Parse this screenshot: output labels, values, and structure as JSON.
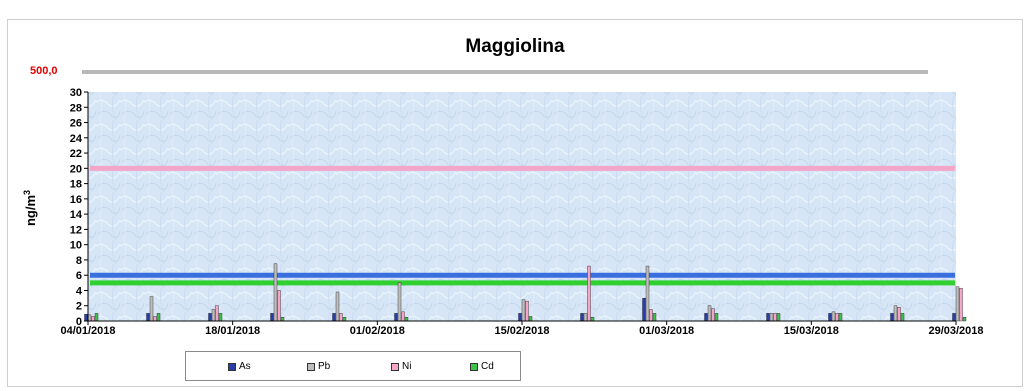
{
  "chart_data": {
    "type": "bar",
    "title": "Maggiolina",
    "ylabel": "ng/m",
    "ylabel_sup": "3",
    "ylim": [
      0,
      30
    ],
    "y_ticks": [
      0,
      2,
      4,
      6,
      8,
      10,
      12,
      14,
      16,
      18,
      20,
      22,
      24,
      26,
      28,
      30
    ],
    "x_tick_labels": [
      "04/01/2018",
      "18/01/2018",
      "01/02/2018",
      "15/02/2018",
      "01/03/2018",
      "15/03/2018",
      "29/03/2018"
    ],
    "x": [
      "04/01/2018",
      "10/01/2018",
      "16/01/2018",
      "22/01/2018",
      "28/01/2018",
      "03/02/2018",
      "09/02/2018",
      "15/02/2018",
      "21/02/2018",
      "27/02/2018",
      "05/03/2018",
      "11/03/2018",
      "17/03/2018",
      "23/03/2018",
      "29/03/2018"
    ],
    "x_range": [
      "04/01/2018",
      "29/03/2018"
    ],
    "series": [
      {
        "name": "As",
        "color": "#2a3ea8",
        "values": [
          0.9,
          1.0,
          1.0,
          1.0,
          1.0,
          1.0,
          0,
          1.0,
          1.0,
          3.0,
          1.0,
          1.0,
          1.0,
          1.0,
          1.0
        ]
      },
      {
        "name": "Pb",
        "color": "#bdbdbd",
        "values": [
          0.8,
          3.2,
          1.5,
          7.5,
          3.8,
          5.0,
          0,
          2.8,
          1.0,
          7.2,
          2.0,
          1.0,
          1.2,
          2.0,
          4.5
        ]
      },
      {
        "name": "Ni",
        "color": "#f4a6c8",
        "values": [
          0.6,
          0.6,
          2.0,
          4.0,
          1.0,
          1.2,
          0,
          2.6,
          7.2,
          1.5,
          1.6,
          1.0,
          1.0,
          1.8,
          4.3
        ]
      },
      {
        "name": "Cd",
        "color": "#3cc24a",
        "values": [
          1.0,
          1.0,
          1.0,
          0.5,
          0.5,
          0.5,
          0,
          0.6,
          0.5,
          1.0,
          1.0,
          1.0,
          1.0,
          1.0,
          0.5
        ]
      }
    ],
    "limits": [
      {
        "value": 500,
        "label": "500,0",
        "color": "#b8b8b8",
        "off_scale": true
      },
      {
        "value": 20,
        "color": "#f4a6c8"
      },
      {
        "value": 6,
        "color": "#3a6fe0"
      },
      {
        "value": 5,
        "color": "#2fd02f"
      }
    ],
    "grid": false,
    "legend_position": "bottom-left"
  }
}
